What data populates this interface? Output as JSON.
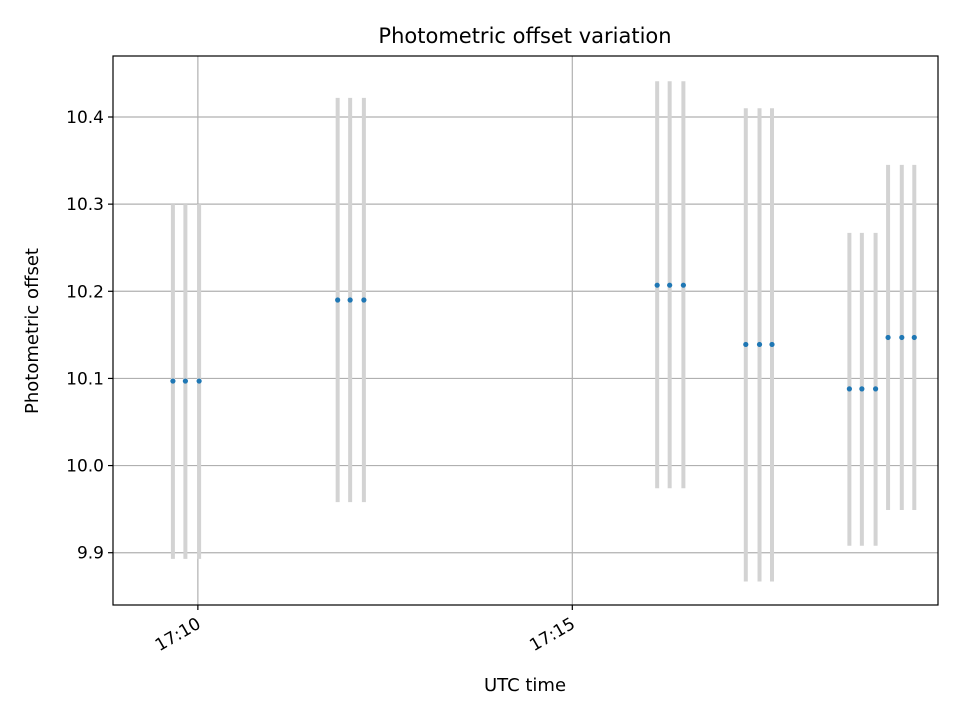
{
  "chart_data": {
    "type": "scatter",
    "title": "Photometric offset variation",
    "xlabel": "UTC time",
    "ylabel": "Photometric offset",
    "xlim": [
      "17:08:52",
      "17:19:53"
    ],
    "ylim": [
      9.84,
      10.47
    ],
    "x_ticks": [
      "17:10",
      "17:15"
    ],
    "y_ticks": [
      9.9,
      10.0,
      10.1,
      10.2,
      10.3,
      10.4
    ],
    "y_tick_labels": [
      "9.9",
      "10.0",
      "10.1",
      "10.2",
      "10.3",
      "10.4"
    ],
    "x_tick_rotation_deg": 30,
    "grid": true,
    "legend": "none",
    "marker_color": "#1f77b4",
    "errorbar_color": "#d3d3d3",
    "series": [
      {
        "points": [
          {
            "x": "17:09:40",
            "y": 10.097,
            "ymin": 9.893,
            "ymax": 10.3
          },
          {
            "x": "17:09:50",
            "y": 10.097,
            "ymin": 9.893,
            "ymax": 10.3
          },
          {
            "x": "17:10:01",
            "y": 10.097,
            "ymin": 9.893,
            "ymax": 10.3
          },
          {
            "x": "17:11:52",
            "y": 10.19,
            "ymin": 9.958,
            "ymax": 10.422
          },
          {
            "x": "17:12:02",
            "y": 10.19,
            "ymin": 9.958,
            "ymax": 10.422
          },
          {
            "x": "17:12:13",
            "y": 10.19,
            "ymin": 9.958,
            "ymax": 10.422
          },
          {
            "x": "17:16:08",
            "y": 10.207,
            "ymin": 9.974,
            "ymax": 10.441
          },
          {
            "x": "17:16:18",
            "y": 10.207,
            "ymin": 9.974,
            "ymax": 10.441
          },
          {
            "x": "17:16:29",
            "y": 10.207,
            "ymin": 9.974,
            "ymax": 10.441
          },
          {
            "x": "17:17:19",
            "y": 10.139,
            "ymin": 9.867,
            "ymax": 10.41
          },
          {
            "x": "17:17:30",
            "y": 10.139,
            "ymin": 9.867,
            "ymax": 10.41
          },
          {
            "x": "17:17:40",
            "y": 10.139,
            "ymin": 9.867,
            "ymax": 10.41
          },
          {
            "x": "17:18:42",
            "y": 10.088,
            "ymin": 9.908,
            "ymax": 10.267
          },
          {
            "x": "17:18:52",
            "y": 10.088,
            "ymin": 9.908,
            "ymax": 10.267
          },
          {
            "x": "17:19:03",
            "y": 10.088,
            "ymin": 9.908,
            "ymax": 10.267
          },
          {
            "x": "17:19:13",
            "y": 10.147,
            "ymin": 9.949,
            "ymax": 10.345
          },
          {
            "x": "17:19:24",
            "y": 10.147,
            "ymin": 9.949,
            "ymax": 10.345
          },
          {
            "x": "17:19:34",
            "y": 10.147,
            "ymin": 9.949,
            "ymax": 10.345
          }
        ]
      }
    ]
  }
}
